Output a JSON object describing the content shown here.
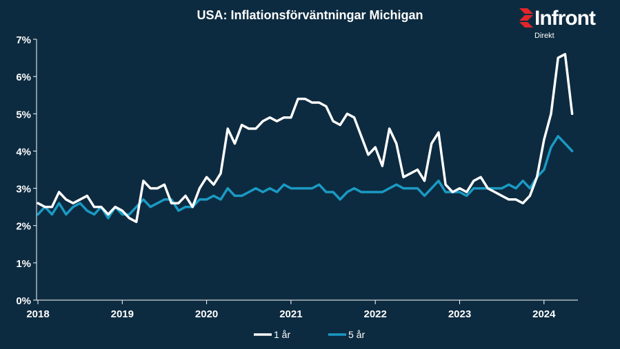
{
  "brand": {
    "name": "Infront",
    "sub": "Direkt",
    "accent": "#e0262b"
  },
  "colors": {
    "background": "#0d2b40",
    "axis": "#ffffff",
    "series_1": "#ffffff",
    "series_2": "#1a9ac4"
  },
  "chart_data": {
    "type": "line",
    "title": "USA: Inflationsförväntningar  Michigan",
    "xlabel": "",
    "ylabel": "",
    "x_ticks": [
      "2018",
      "2019",
      "2020",
      "2021",
      "2022",
      "2023",
      "2024"
    ],
    "y_ticks": [
      "0%",
      "1%",
      "2%",
      "3%",
      "4%",
      "5%",
      "6%",
      "7%"
    ],
    "ylim": [
      0,
      7
    ],
    "x_start": "2018-01",
    "grid": false,
    "legend": "bottom",
    "series": [
      {
        "name": "1 år",
        "color": "#ffffff",
        "values": [
          2.6,
          2.5,
          2.5,
          2.9,
          2.7,
          2.6,
          2.7,
          2.8,
          2.5,
          2.5,
          2.3,
          2.5,
          2.4,
          2.2,
          2.1,
          3.2,
          3.0,
          3.0,
          3.1,
          2.6,
          2.6,
          2.8,
          2.5,
          3.0,
          3.3,
          3.1,
          3.4,
          4.6,
          4.2,
          4.7,
          4.6,
          4.6,
          4.8,
          4.9,
          4.8,
          4.9,
          4.9,
          5.4,
          5.4,
          5.3,
          5.3,
          5.2,
          4.8,
          4.7,
          5.0,
          4.9,
          4.4,
          3.9,
          4.1,
          3.6,
          4.6,
          4.2,
          3.3,
          3.4,
          3.5,
          3.2,
          4.2,
          4.5,
          3.1,
          2.9,
          3.0,
          2.9,
          3.2,
          3.3,
          3.0,
          2.9,
          2.8,
          2.7,
          2.7,
          2.6,
          2.8,
          3.3,
          4.3,
          5.0,
          6.5,
          6.6,
          5.0
        ]
      },
      {
        "name": "5 år",
        "color": "#1a9ac4",
        "values": [
          2.3,
          2.5,
          2.3,
          2.6,
          2.3,
          2.5,
          2.6,
          2.4,
          2.3,
          2.5,
          2.2,
          2.5,
          2.3,
          2.3,
          2.5,
          2.7,
          2.5,
          2.6,
          2.7,
          2.7,
          2.4,
          2.5,
          2.5,
          2.7,
          2.7,
          2.8,
          2.7,
          3.0,
          2.8,
          2.8,
          2.9,
          3.0,
          2.9,
          3.0,
          2.9,
          3.1,
          3.0,
          3.0,
          3.0,
          3.0,
          3.1,
          2.9,
          2.9,
          2.7,
          2.9,
          3.0,
          2.9,
          2.9,
          2.9,
          2.9,
          3.0,
          3.1,
          3.0,
          3.0,
          3.0,
          2.8,
          3.0,
          3.2,
          2.9,
          2.9,
          2.9,
          2.8,
          3.0,
          3.0,
          3.0,
          3.0,
          3.0,
          3.1,
          3.0,
          3.2,
          3.0,
          3.3,
          3.5,
          4.1,
          4.4,
          4.2,
          4.0
        ]
      }
    ]
  }
}
